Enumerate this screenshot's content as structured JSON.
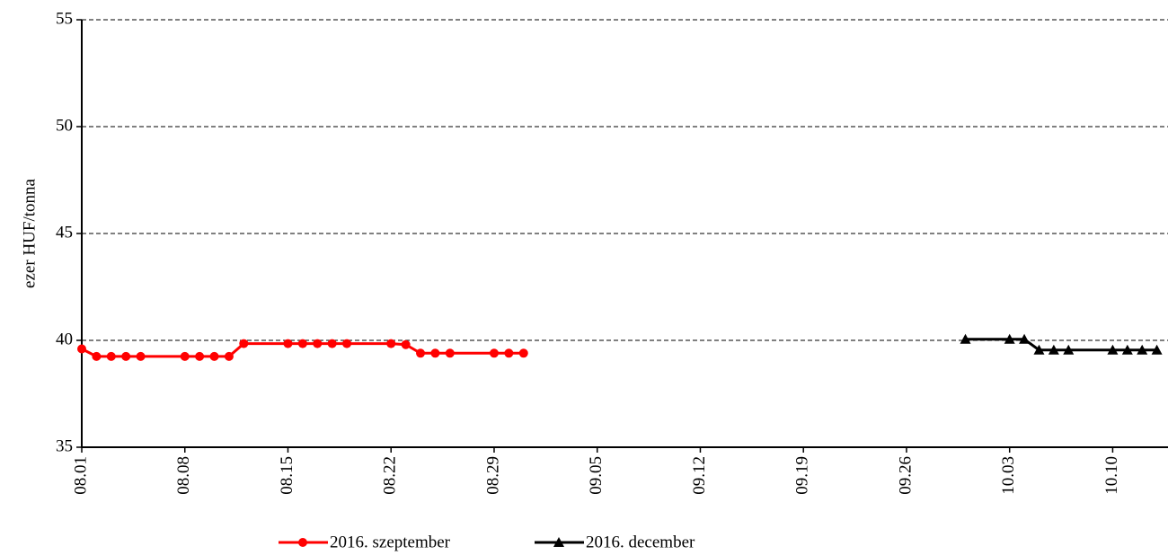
{
  "chart_data": {
    "type": "line",
    "y_label": "ezer HUF/tonna",
    "xlim": [
      "08.01",
      "10.14"
    ],
    "xticks": [
      "08.01",
      "08.08",
      "08.15",
      "08.22",
      "08.29",
      "09.05",
      "09.12",
      "09.19",
      "09.26",
      "10.03",
      "10.10"
    ],
    "ylim": [
      35,
      55
    ],
    "yticks": [
      35,
      40,
      45,
      50,
      55
    ],
    "grid": true,
    "legend": "bottom",
    "series": [
      {
        "name": "2016. szeptember",
        "color": "#ff0000",
        "marker": "circle",
        "x": [
          "08.01",
          "08.02",
          "08.03",
          "08.04",
          "08.05",
          "08.08",
          "08.09",
          "08.10",
          "08.11",
          "08.12",
          "08.15",
          "08.16",
          "08.17",
          "08.18",
          "08.19",
          "08.22",
          "08.23",
          "08.24",
          "08.25",
          "08.26",
          "08.29",
          "08.30",
          "08.31"
        ],
        "values": [
          39.6,
          39.25,
          39.25,
          39.25,
          39.25,
          39.25,
          39.25,
          39.25,
          39.25,
          39.85,
          39.85,
          39.85,
          39.85,
          39.85,
          39.85,
          39.85,
          39.8,
          39.4,
          39.4,
          39.4,
          39.4,
          39.4,
          39.4
        ]
      },
      {
        "name": "2016. december",
        "color": "#000000",
        "marker": "triangle",
        "x": [
          "09.30",
          "10.03",
          "10.04",
          "10.05",
          "10.06",
          "10.07",
          "10.10",
          "10.11",
          "10.12",
          "10.13"
        ],
        "values": [
          40.05,
          40.05,
          40.05,
          39.55,
          39.55,
          39.55,
          39.55,
          39.55,
          39.55,
          39.55
        ]
      }
    ]
  }
}
